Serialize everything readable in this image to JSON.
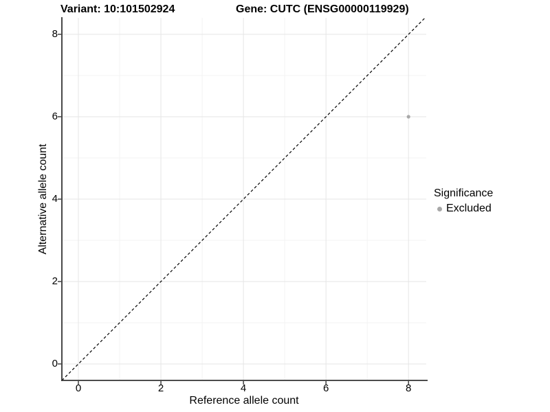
{
  "chart_data": {
    "type": "scatter",
    "titles": {
      "variant": "Variant: 10:101502924",
      "gene": "Gene: CUTC (ENSG00000119929)"
    },
    "xlabel": "Reference allele count",
    "ylabel": "Alternative allele count",
    "xlim": [
      -0.4,
      8.43
    ],
    "ylim": [
      -0.4,
      8.4
    ],
    "x_ticks": [
      0,
      2,
      4,
      6,
      8
    ],
    "y_ticks": [
      0,
      2,
      4,
      6,
      8
    ],
    "x_minor": [
      1,
      3,
      5,
      7
    ],
    "y_minor": [
      1,
      3,
      5,
      7
    ],
    "grid": true,
    "legend_position": "right",
    "legend": {
      "title": "Significance",
      "items": [
        {
          "label": "Excluded",
          "color": "#a8a8a8",
          "shape": "dot"
        }
      ]
    },
    "points": [
      {
        "x": 8,
        "y": 6,
        "series": "Excluded",
        "color": "#a8a8a8"
      }
    ],
    "reference_line": {
      "type": "identity",
      "style": "dashed",
      "from": [
        -0.4,
        -0.4
      ],
      "to": [
        8.4,
        8.4
      ],
      "color": "#000000"
    },
    "colors": {
      "grid_major": "#e5e5e5",
      "grid_minor": "#f3f3f3",
      "axis_line": "#333333",
      "tick_mark": "#333333",
      "text": "#000000"
    }
  }
}
